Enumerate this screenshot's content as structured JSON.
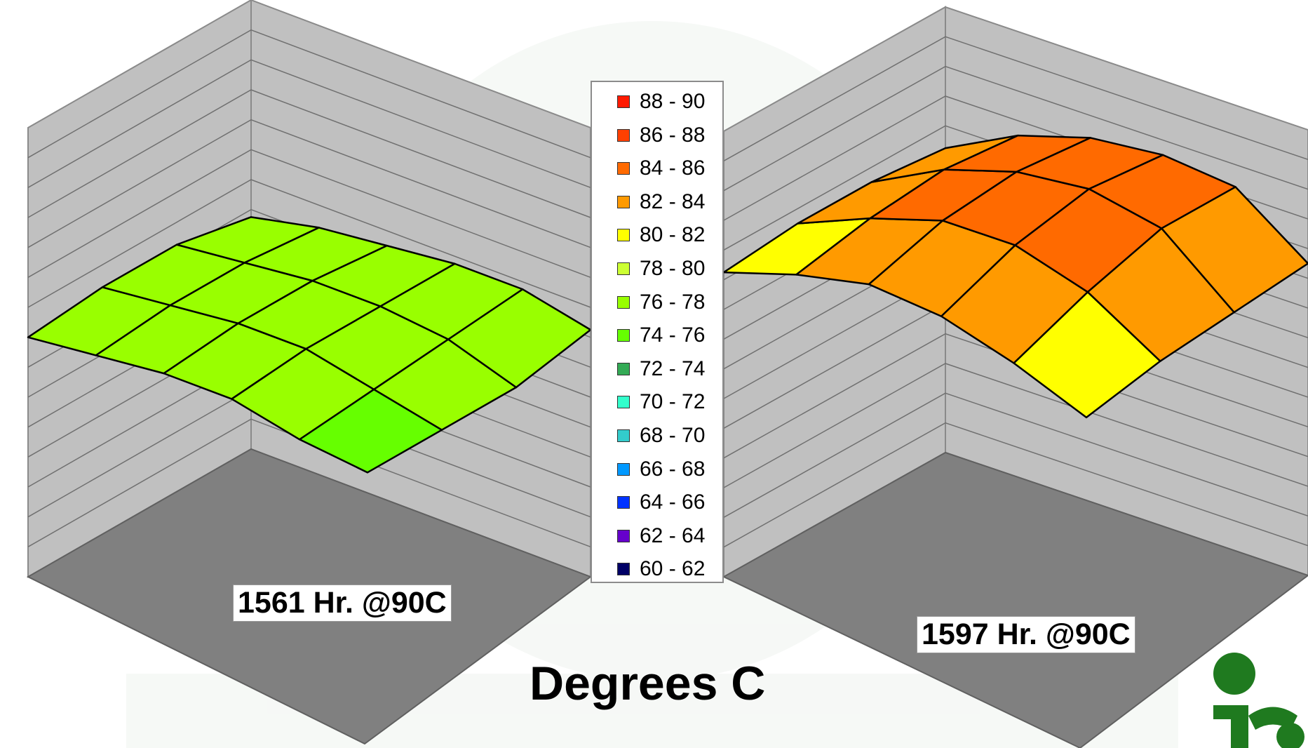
{
  "title": "Degrees C",
  "legend": [
    {
      "label": "88 - 90",
      "color": "#ff1a00"
    },
    {
      "label": "86 - 88",
      "color": "#ff4000"
    },
    {
      "label": "84 - 86",
      "color": "#ff6a00"
    },
    {
      "label": "82 - 84",
      "color": "#ff9a00"
    },
    {
      "label": "80 - 82",
      "color": "#ffff00"
    },
    {
      "label": "78 - 80",
      "color": "#ccff33"
    },
    {
      "label": "76 - 78",
      "color": "#99ff00"
    },
    {
      "label": "74 - 76",
      "color": "#66ff00"
    },
    {
      "label": "72 - 74",
      "color": "#33aa55"
    },
    {
      "label": "70 - 72",
      "color": "#33ffcc"
    },
    {
      "label": "68 - 70",
      "color": "#33cccc"
    },
    {
      "label": "66 - 68",
      "color": "#0099ff"
    },
    {
      "label": "64 - 66",
      "color": "#0033ff"
    },
    {
      "label": "62 - 64",
      "color": "#6600cc"
    },
    {
      "label": "60 - 62",
      "color": "#000066"
    }
  ],
  "chart_data": [
    {
      "type": "surface",
      "title": "1561 Hr. @90C",
      "zlabel": "Degrees C",
      "zlim": [
        60,
        90
      ],
      "grid": true,
      "z": [
        [
          75.5,
          76.5,
          77.0,
          77.5,
          77.5,
          76.5
        ],
        [
          76.5,
          77.0,
          77.5,
          77.5,
          77.0,
          75.5
        ],
        [
          76.5,
          77.0,
          77.5,
          77.5,
          76.5,
          75.5
        ],
        [
          76.0,
          76.5,
          77.0,
          77.0,
          76.0,
          75.5
        ]
      ]
    },
    {
      "type": "surface",
      "title": "1597 Hr. @90C",
      "zlabel": "Degrees C",
      "zlim": [
        60,
        90
      ],
      "grid": true,
      "z": [
        [
          80.5,
          83.0,
          84.5,
          85.0,
          84.5,
          81.0
        ],
        [
          81.0,
          83.5,
          85.0,
          85.5,
          84.5,
          80.5
        ],
        [
          81.0,
          83.0,
          84.5,
          84.5,
          83.0,
          80.0
        ],
        [
          80.5,
          82.0,
          83.0,
          82.5,
          81.0,
          79.0
        ]
      ]
    }
  ],
  "logo": {
    "name": "logo-mark",
    "colors": [
      "#1f7a1f"
    ]
  }
}
